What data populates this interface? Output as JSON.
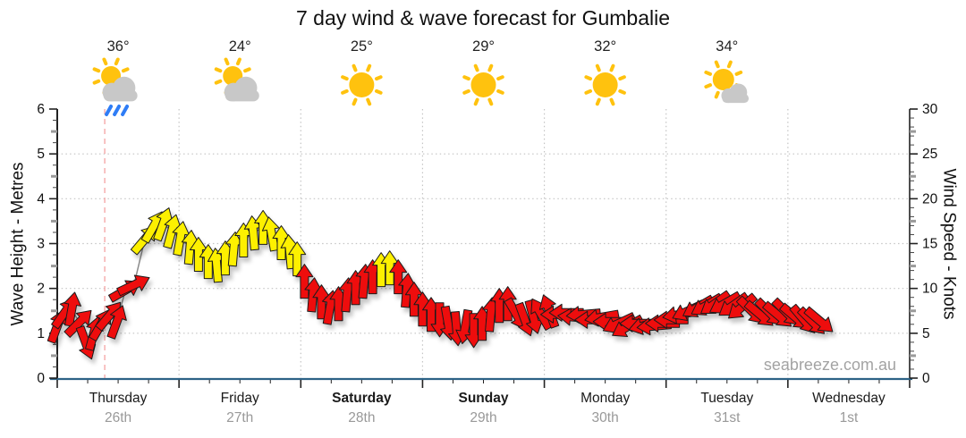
{
  "title": "7 day wind & wave forecast for Gumbalie",
  "watermark": "seabreeze.com.au",
  "axes": {
    "left_label": "Wave Height - Metres",
    "right_label": "Wind Speed - Knots",
    "left_ticks": [
      0,
      1,
      2,
      3,
      4,
      5,
      6
    ],
    "right_ticks": [
      0,
      5,
      10,
      15,
      20,
      25,
      30
    ]
  },
  "days": [
    {
      "name": "Thursday",
      "date": "26th",
      "temp": "36°",
      "icon": "sun-cloud-rain",
      "weekend": false
    },
    {
      "name": "Friday",
      "date": "27th",
      "temp": "24°",
      "icon": "sun-cloud",
      "weekend": false
    },
    {
      "name": "Saturday",
      "date": "28th",
      "temp": "25°",
      "icon": "sun",
      "weekend": true
    },
    {
      "name": "Sunday",
      "date": "29th",
      "temp": "29°",
      "icon": "sun",
      "weekend": true
    },
    {
      "name": "Monday",
      "date": "30th",
      "temp": "32°",
      "icon": "sun",
      "weekend": false
    },
    {
      "name": "Tuesday",
      "date": "31st",
      "temp": "34°",
      "icon": "sun-cloud-small",
      "weekend": false
    },
    {
      "name": "Wednesday",
      "date": "1st",
      "temp": null,
      "icon": null,
      "weekend": false
    }
  ],
  "colors": {
    "arrow_red": "#ee1111",
    "arrow_yellow": "#fdf000",
    "arrow_outline": "#1a1a1a",
    "sun": "#ffc20e",
    "cloud": "#c8c8c8",
    "rain": "#2f7df6",
    "axis_blue": "#2d6286",
    "axis_dark": "#222222",
    "grid": "#c4c4c4",
    "now_line": "#f5a9a9",
    "speed_line": "#8a8a8a",
    "text_dark": "#1a1a1a",
    "text_gray": "#999999"
  },
  "chart_data": {
    "type": "line",
    "subtype": "wind-arrow-forecast",
    "title": "7 day wind & wave forecast for Gumbalie",
    "x_unit": "days from Thursday 00:00 (7 days shown, Thursday 26th to Wednesday 1st)",
    "y_left": {
      "label": "Wave Height - Metres",
      "range": [
        0,
        6
      ],
      "gridlines": [
        1,
        2,
        3,
        4,
        5
      ]
    },
    "y_right": {
      "label": "Wind Speed - Knots",
      "range": [
        0,
        30
      ]
    },
    "grid": "dotted, vertical lines at day boundaries",
    "now_line_day": 0.39,
    "arrow_colors_legend": {
      "red": "lighter winds / default",
      "yellow": "stronger winds ~13-17 knots"
    },
    "points_format": [
      "day_fraction",
      "wind_knots",
      "arrow_rotation_deg_cw_from_up",
      "color r|y"
    ],
    "points": [
      [
        0.0,
        5.8,
        20,
        "r"
      ],
      [
        0.06,
        7.3,
        35,
        "r"
      ],
      [
        0.12,
        7.7,
        10,
        "r"
      ],
      [
        0.18,
        6.2,
        45,
        "r"
      ],
      [
        0.235,
        3.9,
        160,
        "r"
      ],
      [
        0.3,
        5.0,
        15,
        "r"
      ],
      [
        0.36,
        6.0,
        30,
        "r"
      ],
      [
        0.43,
        7.0,
        40,
        "r"
      ],
      [
        0.49,
        6.3,
        20,
        "r"
      ],
      [
        0.56,
        9.8,
        60,
        "r"
      ],
      [
        0.63,
        10.4,
        65,
        "r"
      ],
      [
        0.72,
        15.5,
        40,
        "y"
      ],
      [
        0.79,
        16.9,
        30,
        "y"
      ],
      [
        0.87,
        17.2,
        20,
        "y"
      ],
      [
        0.94,
        16.4,
        15,
        "y"
      ],
      [
        1.01,
        15.6,
        10,
        "y"
      ],
      [
        1.09,
        14.6,
        5,
        "y"
      ],
      [
        1.16,
        13.8,
        0,
        "y"
      ],
      [
        1.24,
        13.0,
        0,
        "y"
      ],
      [
        1.31,
        12.6,
        -5,
        "y"
      ],
      [
        1.38,
        13.4,
        0,
        "y"
      ],
      [
        1.45,
        14.4,
        5,
        "y"
      ],
      [
        1.53,
        15.4,
        0,
        "y"
      ],
      [
        1.61,
        16.2,
        -5,
        "y"
      ],
      [
        1.69,
        16.8,
        0,
        "y"
      ],
      [
        1.76,
        16.1,
        -10,
        "y"
      ],
      [
        1.84,
        15.1,
        0,
        "y"
      ],
      [
        1.91,
        14.1,
        -5,
        "y"
      ],
      [
        1.97,
        13.3,
        0,
        "y"
      ],
      [
        2.03,
        10.8,
        0,
        "r"
      ],
      [
        2.1,
        9.3,
        5,
        "r"
      ],
      [
        2.17,
        8.5,
        0,
        "r"
      ],
      [
        2.24,
        7.9,
        10,
        "r"
      ],
      [
        2.31,
        8.3,
        0,
        "r"
      ],
      [
        2.38,
        9.3,
        5,
        "r"
      ],
      [
        2.45,
        10.1,
        0,
        "r"
      ],
      [
        2.52,
        10.8,
        5,
        "r"
      ],
      [
        2.59,
        11.3,
        0,
        "r"
      ],
      [
        2.66,
        12.1,
        0,
        "y"
      ],
      [
        2.73,
        12.3,
        0,
        "y"
      ],
      [
        2.8,
        11.3,
        0,
        "r"
      ],
      [
        2.87,
        9.8,
        5,
        "r"
      ],
      [
        2.93,
        8.8,
        0,
        "r"
      ],
      [
        3.0,
        7.7,
        0,
        "r"
      ],
      [
        3.07,
        7.1,
        0,
        "r"
      ],
      [
        3.14,
        6.5,
        180,
        "r"
      ],
      [
        3.21,
        6.1,
        170,
        "r"
      ],
      [
        3.28,
        5.5,
        175,
        "r"
      ],
      [
        3.35,
        5.7,
        190,
        "r"
      ],
      [
        3.42,
        5.3,
        180,
        "r"
      ],
      [
        3.49,
        6.1,
        0,
        "r"
      ],
      [
        3.56,
        7.1,
        5,
        "r"
      ],
      [
        3.63,
        8.1,
        0,
        "r"
      ],
      [
        3.7,
        8.3,
        0,
        "r"
      ],
      [
        3.77,
        7.1,
        150,
        "r"
      ],
      [
        3.84,
        6.5,
        160,
        "r"
      ],
      [
        3.91,
        6.8,
        165,
        "r"
      ],
      [
        3.97,
        7.2,
        -30,
        "r"
      ],
      [
        4.04,
        7.5,
        -20,
        "r"
      ],
      [
        4.11,
        7.1,
        -90,
        "r"
      ],
      [
        4.18,
        7.3,
        -90,
        "r"
      ],
      [
        4.25,
        6.8,
        -85,
        "r"
      ],
      [
        4.32,
        7.1,
        -95,
        "r"
      ],
      [
        4.39,
        6.5,
        -90,
        "r"
      ],
      [
        4.47,
        6.8,
        -100,
        "r"
      ],
      [
        4.54,
        6.3,
        -90,
        "r"
      ],
      [
        4.61,
        6.1,
        -115,
        "r"
      ],
      [
        4.68,
        5.7,
        -120,
        "r"
      ],
      [
        4.76,
        6.1,
        -90,
        "r"
      ],
      [
        4.83,
        5.9,
        -105,
        "r"
      ],
      [
        4.9,
        5.8,
        -95,
        "r"
      ],
      [
        4.97,
        6.1,
        -90,
        "r"
      ],
      [
        5.04,
        6.5,
        -90,
        "r"
      ],
      [
        5.11,
        7.1,
        -100,
        "r"
      ],
      [
        5.18,
        7.5,
        -115,
        "r"
      ],
      [
        5.26,
        7.9,
        -120,
        "r"
      ],
      [
        5.33,
        8.1,
        -120,
        "r"
      ],
      [
        5.4,
        8.3,
        -125,
        "r"
      ],
      [
        5.48,
        8.3,
        -120,
        "r"
      ],
      [
        5.55,
        8.1,
        -125,
        "r"
      ],
      [
        5.62,
        7.9,
        -130,
        "r"
      ],
      [
        5.7,
        7.5,
        135,
        "r"
      ],
      [
        5.77,
        7.1,
        130,
        "r"
      ],
      [
        5.85,
        7.3,
        135,
        "r"
      ],
      [
        5.92,
        7.0,
        130,
        "r"
      ],
      [
        5.99,
        7.3,
        135,
        "r"
      ],
      [
        6.06,
        6.8,
        130,
        "r"
      ],
      [
        6.13,
        6.5,
        140,
        "r"
      ],
      [
        6.2,
        6.3,
        135,
        "r"
      ],
      [
        6.26,
        6.4,
        130,
        "r"
      ]
    ]
  }
}
